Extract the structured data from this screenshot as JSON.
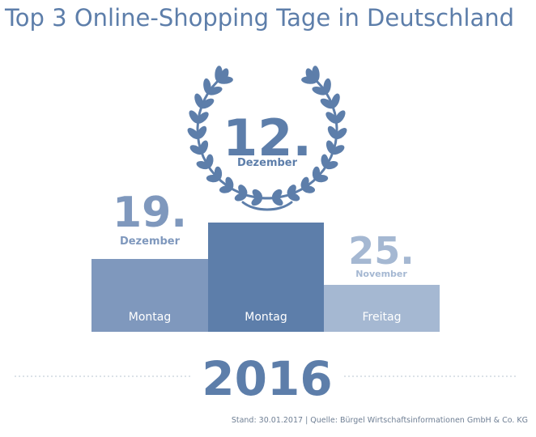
{
  "title": "Top 3 Online-Shopping Tage in Deutschland",
  "chart_data": {
    "type": "bar",
    "title": "Top 3 Online-Shopping Tage in Deutschland",
    "year": "2016",
    "bars": [
      {
        "rank": 2,
        "day": "19.",
        "month": "Dezember",
        "weekday": "Montag",
        "color": "#7f98bd"
      },
      {
        "rank": 1,
        "day": "12.",
        "month": "Dezember",
        "weekday": "Montag",
        "color": "#5d7eaa"
      },
      {
        "rank": 3,
        "day": "25.",
        "month": "November",
        "weekday": "Freitag",
        "color": "#a5b8d2"
      }
    ]
  },
  "colors": {
    "primary": "#5d7eaa",
    "second": "#7f98bd",
    "third": "#a5b8d2",
    "dots": "#c8d0da"
  },
  "footer": "Stand: 30.01.2017 | Quelle: Bürgel Wirtschaftsinformationen GmbH & Co. KG"
}
